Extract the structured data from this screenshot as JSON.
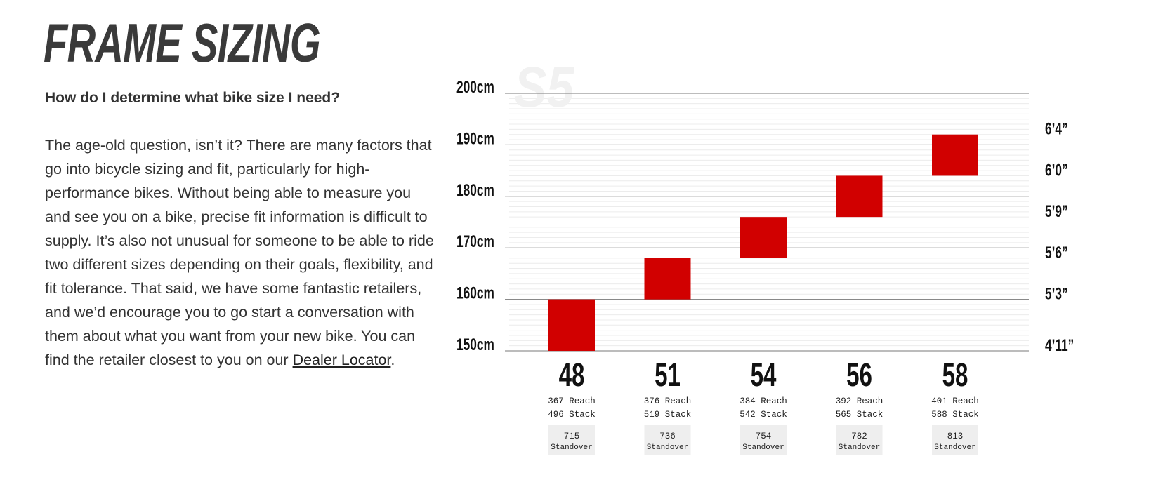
{
  "header": {
    "title": "FRAME SIZING",
    "question": "How do I determine what bike size I need?"
  },
  "body": {
    "text": "The age-old question, isn’t it? There are many factors that go into bicycle sizing and fit, particularly for high-performance bikes. Without being able to measure you and see you on a bike, precise fit information is difficult to supply. It’s also not unusual for someone to be able to ride two different sizes depending on their goals, flexibility, and fit tolerance. That said, we have some fantastic retailers, and we’d encourage you to go start a conversation with them about what you want from your new bike. You can find the retailer closest to you on our ",
    "link_label": "Dealer Locator",
    "trailing": "."
  },
  "chart_data": {
    "type": "bar",
    "watermark": "S5",
    "ylim": [
      150,
      200
    ],
    "y_ticks_cm": [
      {
        "value": 150,
        "label": "150cm"
      },
      {
        "value": 160,
        "label": "160cm"
      },
      {
        "value": 170,
        "label": "170cm"
      },
      {
        "value": 180,
        "label": "180cm"
      },
      {
        "value": 190,
        "label": "190cm"
      },
      {
        "value": 200,
        "label": "200cm"
      }
    ],
    "y_ticks_ft": [
      {
        "value": 150,
        "label": "4’11”"
      },
      {
        "value": 160,
        "label": "5’3”"
      },
      {
        "value": 168,
        "label": "5’6”"
      },
      {
        "value": 176,
        "label": "5’9”"
      },
      {
        "value": 184,
        "label": "6’0”"
      },
      {
        "value": 192,
        "label": "6’4”"
      }
    ],
    "grid": true,
    "bar_color": "#d10000",
    "categories": [
      "48",
      "51",
      "54",
      "56",
      "58"
    ],
    "rider_height_cm": [
      [
        150,
        160
      ],
      [
        160,
        168
      ],
      [
        168,
        176
      ],
      [
        176,
        184
      ],
      [
        184,
        192
      ]
    ],
    "reach": [
      "367 Reach",
      "376 Reach",
      "384 Reach",
      "392 Reach",
      "401 Reach"
    ],
    "stack": [
      "496 Stack",
      "519 Stack",
      "542 Stack",
      "565 Stack",
      "588 Stack"
    ],
    "standover": [
      "715",
      "736",
      "754",
      "782",
      "813"
    ],
    "standover_label": "Standover"
  }
}
